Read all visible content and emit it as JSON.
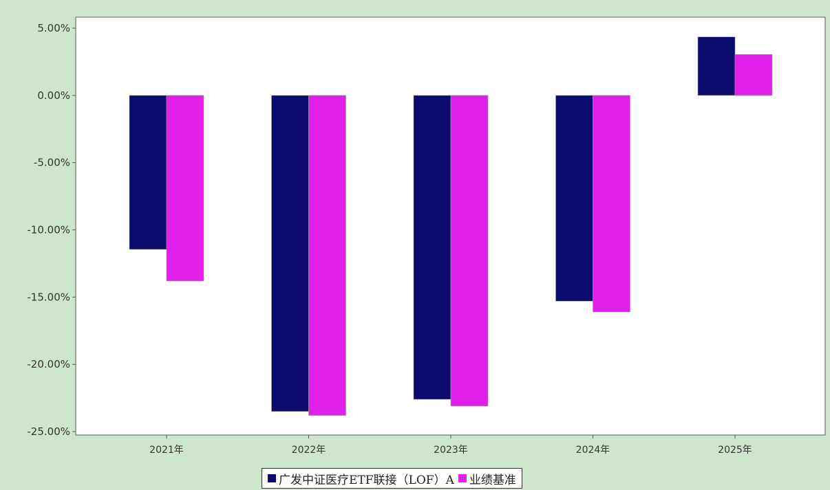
{
  "chart_data": {
    "type": "bar",
    "title": "",
    "xlabel": "",
    "ylabel": "",
    "categories": [
      "2021年",
      "2022年",
      "2023年",
      "2024年",
      "2025年"
    ],
    "series": [
      {
        "name": "广发中证医疗ETF联接（LOF）A",
        "color": "#0b0b6e",
        "values": [
          -11.45,
          -23.5,
          -22.6,
          -15.3,
          4.35
        ]
      },
      {
        "name": "业绩基准",
        "color": "#e020e8",
        "values": [
          -13.8,
          -23.8,
          -23.1,
          -16.1,
          3.05
        ]
      }
    ],
    "ylim": [
      -25,
      5
    ],
    "yticks": [
      5,
      0,
      -5,
      -10,
      -15,
      -20,
      -25
    ],
    "ytick_labels": [
      "5.00%",
      "0.00%",
      "-5.00%",
      "-10.00%",
      "-15.00%",
      "-20.00%",
      "-25.00%"
    ],
    "grid": false,
    "legend_position": "bottom-center"
  }
}
